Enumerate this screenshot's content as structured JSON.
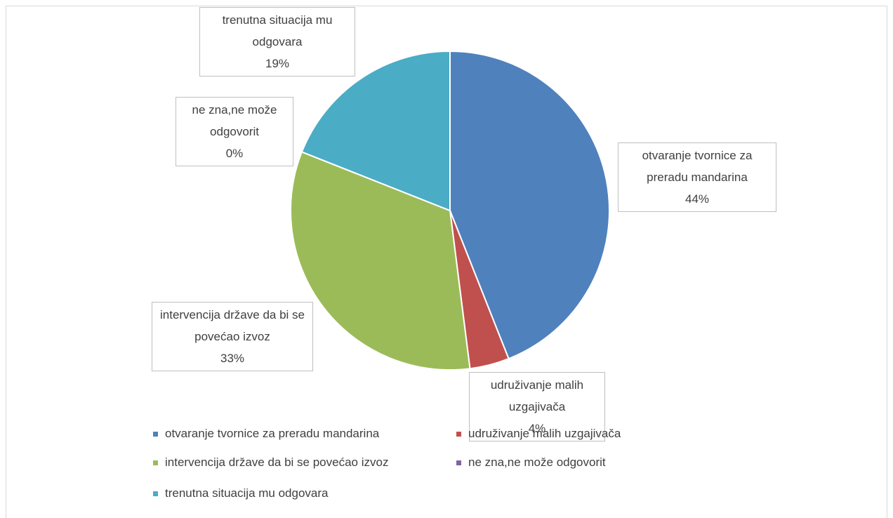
{
  "chart_data": {
    "type": "pie",
    "categories": [
      "otvaranje tvornice za preradu mandarina",
      "udruživanje malih uzgajivača",
      "intervencija države da bi se povećao izvoz",
      "ne zna,ne može odgovorit",
      "trenutna situacija mu odgovara"
    ],
    "values": [
      44,
      4,
      33,
      0,
      19
    ],
    "value_labels": [
      "44%",
      "4%",
      "33%",
      "0%",
      "19%"
    ],
    "colors": [
      "#4f81bd",
      "#c0504d",
      "#9bbb59",
      "#8064a2",
      "#4bacc6"
    ],
    "legend": "bottom"
  }
}
